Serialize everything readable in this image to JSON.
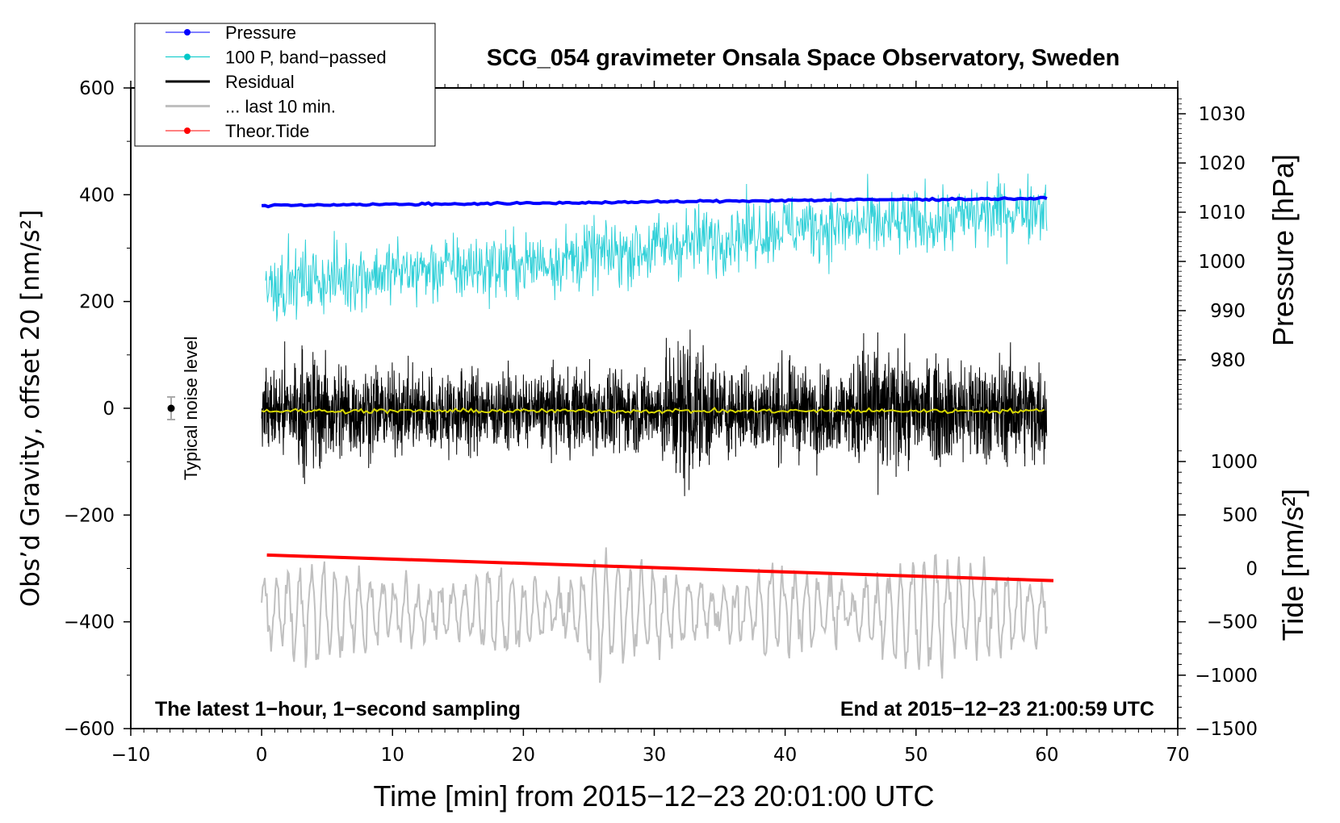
{
  "chart_data": {
    "type": "line",
    "title": "SCG_054 gravimeter Onsala Space Observatory, Sweden",
    "xlabel": "Time [min] from 2015−12−23 20:01:00 UTC",
    "ylabel": "Obs’d Gravity, offset 20 [nm/s²]",
    "y2label_pressure": "Pressure [hPa]",
    "y2label_tide": "Tide [nm/s²]",
    "xlim": [
      -10,
      70
    ],
    "ylim": [
      -600,
      600
    ],
    "pressure_lim_ticks": [
      980,
      1030
    ],
    "tide_lim": [
      -1500,
      1000
    ],
    "x_ticks": [
      "−10",
      "0",
      "10",
      "20",
      "30",
      "40",
      "50",
      "60",
      "70"
    ],
    "x_tick_values": [
      -10,
      0,
      10,
      20,
      30,
      40,
      50,
      60,
      70
    ],
    "y_ticks": [
      "600",
      "400",
      "200",
      "0",
      "−200",
      "−400",
      "−600"
    ],
    "y_tick_values": [
      600,
      400,
      200,
      0,
      -200,
      -400,
      -600
    ],
    "pressure_ticks": [
      "1030",
      "1020",
      "1010",
      "1000",
      "990",
      "980"
    ],
    "pressure_tick_values": [
      1030,
      1020,
      1010,
      1000,
      990,
      980
    ],
    "tide_ticks": [
      "1000",
      "500",
      "0",
      "−500",
      "−1000",
      "−1500"
    ],
    "tide_tick_values": [
      1000,
      500,
      0,
      -500,
      -1000,
      -1500
    ],
    "legend": {
      "placement": "top-left",
      "entries": [
        {
          "label": "Pressure",
          "color": "#0000ff",
          "marker": true
        },
        {
          "label": "100 P, band−passed",
          "color": "#00c8c8",
          "marker": true
        },
        {
          "label": "Residual",
          "color": "#000000",
          "marker": false
        },
        {
          "label": "... last 10 min.",
          "color": "#c0c0c0",
          "marker": false
        },
        {
          "label": "Theor.Tide",
          "color": "#ff0000",
          "marker": true
        }
      ]
    },
    "annotations": {
      "left": "The latest 1−hour, 1−second sampling",
      "right": "End at 2015−12−23 21:00:59 UTC",
      "noise": "Typical noise level"
    },
    "noise_level": {
      "x": -7,
      "y": 0,
      "err": 20
    },
    "series": {
      "pressure_hpa": {
        "x": [
          0,
          20,
          40,
          60
        ],
        "y": [
          1011.4,
          1011.8,
          1012.4,
          1012.8
        ]
      },
      "bandpassed_trend": {
        "x": [
          0,
          10,
          20,
          30,
          40,
          50,
          60
        ],
        "y": [
          230,
          255,
          270,
          300,
          340,
          345,
          380
        ],
        "amplitude": 45
      },
      "residual_envelope": {
        "x": [
          0,
          3,
          6,
          10,
          15,
          20,
          25,
          30,
          32.5,
          35,
          40,
          45,
          46,
          50,
          55,
          60
        ],
        "amplitude": [
          60,
          100,
          85,
          65,
          70,
          60,
          70,
          65,
          140,
          70,
          75,
          70,
          120,
          80,
          90,
          80
        ]
      },
      "residual_mean": -5,
      "tide_nm_s2": {
        "x": [
          0,
          60.5
        ],
        "y": [
          125,
          -115
        ]
      },
      "last10_center": -380,
      "last10_envelope": {
        "x": [
          0,
          5,
          10,
          15,
          18,
          22,
          26,
          30,
          35,
          40,
          45,
          50,
          55,
          60
        ],
        "amplitude": [
          60,
          90,
          50,
          45,
          90,
          40,
          110,
          80,
          40,
          90,
          40,
          110,
          80,
          40
        ]
      }
    }
  }
}
